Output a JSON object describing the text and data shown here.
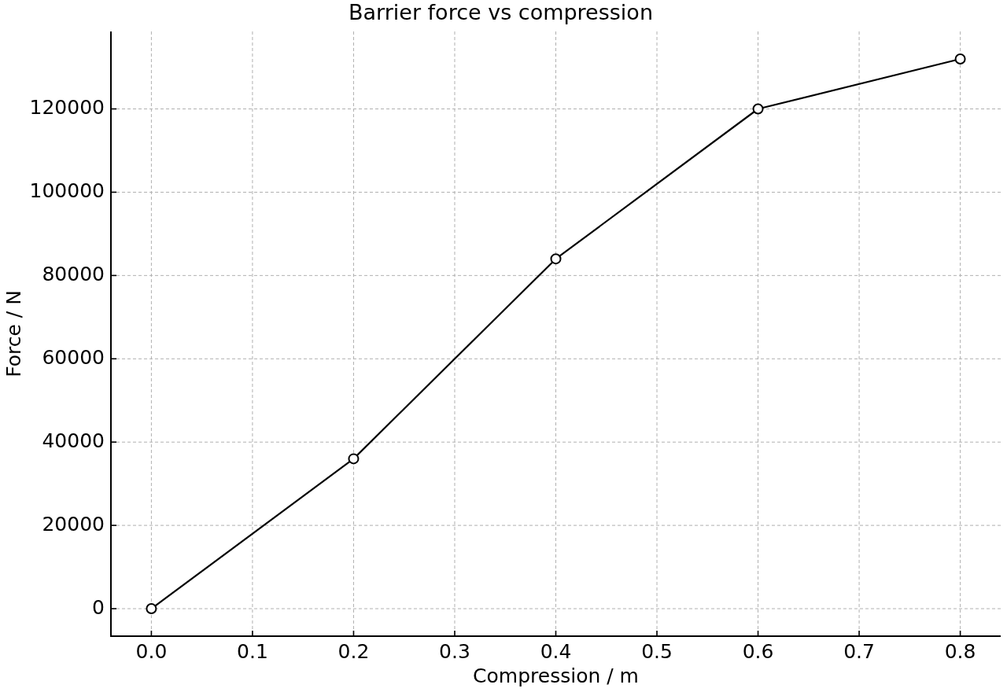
{
  "chart_data": {
    "type": "line",
    "title": "Barrier force vs compression",
    "xlabel": "Compression / m",
    "ylabel": "Force / N",
    "x": [
      0,
      0.2,
      0.4,
      0.6,
      0.8
    ],
    "series": [
      {
        "color": "#000000",
        "values": [
          0,
          36000,
          84000,
          120000,
          132000
        ]
      }
    ],
    "xlim": [
      -0.04,
      0.84
    ],
    "ylim": [
      -6600,
      138600
    ],
    "xticks": [
      {
        "value": 0,
        "label": "0.0"
      },
      0.1,
      0.2,
      0.3,
      0.4,
      0.5,
      0.6,
      0.7,
      0.8
    ],
    "yticks": [
      0,
      20000,
      40000,
      60000,
      80000,
      100000,
      120000
    ],
    "grid": true,
    "marker": "circle",
    "line_style": "solid"
  }
}
